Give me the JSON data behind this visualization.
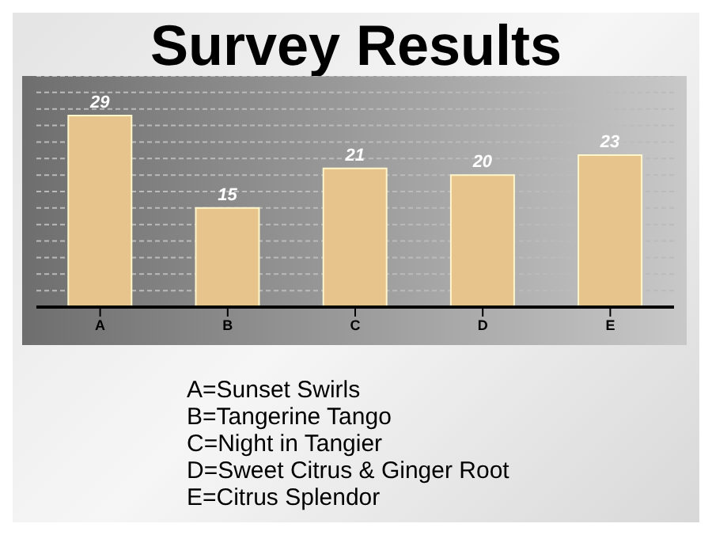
{
  "chart_data": {
    "type": "bar",
    "title": "Survey Results",
    "categories": [
      "A",
      "B",
      "C",
      "D",
      "E"
    ],
    "values": [
      29,
      15,
      21,
      20,
      23
    ],
    "color": "#e6c48c",
    "data_labels": true,
    "ylim": [
      0,
      35
    ],
    "yticks": [
      {
        "value": 0,
        "label": null
      },
      {
        "value": 2.5,
        "label": null
      },
      {
        "value": 5,
        "label": null
      },
      {
        "value": 7.5,
        "label": null
      },
      {
        "value": 10,
        "label": null
      },
      {
        "value": 12.5,
        "label": null
      },
      {
        "value": 15,
        "label": null
      },
      {
        "value": 17.5,
        "label": null
      },
      {
        "value": 20,
        "label": null
      },
      {
        "value": 22.5,
        "label": null
      },
      {
        "value": 25,
        "label": null
      },
      {
        "value": 27.5,
        "label": null
      },
      {
        "value": 30,
        "label": null
      },
      {
        "value": 32.5,
        "label": null
      },
      {
        "value": 35,
        "label": null
      }
    ],
    "grid": "y",
    "tick_labels": "x",
    "legend": false,
    "annotations": [
      "A=Sunset Swirls",
      "B=Tangerine Tango",
      "C=Night in Tangier",
      "D=Sweet Citrus & Ginger Root",
      "E=Citrus Splendor"
    ]
  }
}
